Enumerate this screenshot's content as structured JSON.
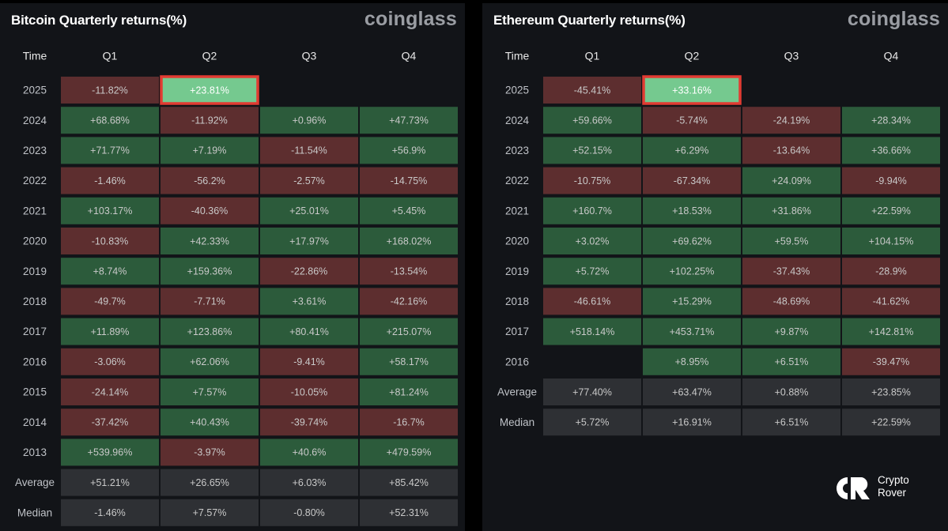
{
  "chart_data": [
    {
      "type": "heatmap",
      "title": "Bitcoin Quarterly returns(%)",
      "brand": "coinglass",
      "row_header": "Time",
      "columns": [
        "Q1",
        "Q2",
        "Q3",
        "Q4"
      ],
      "rows": [
        "2025",
        "2024",
        "2023",
        "2022",
        "2021",
        "2020",
        "2019",
        "2018",
        "2017",
        "2016",
        "2015",
        "2014",
        "2013",
        "Average",
        "Median"
      ],
      "values": [
        [
          "-11.82%",
          "+23.81%",
          "",
          ""
        ],
        [
          "+68.68%",
          "-11.92%",
          "+0.96%",
          "+47.73%"
        ],
        [
          "+71.77%",
          "+7.19%",
          "-11.54%",
          "+56.9%"
        ],
        [
          "-1.46%",
          "-56.2%",
          "-2.57%",
          "-14.75%"
        ],
        [
          "+103.17%",
          "-40.36%",
          "+25.01%",
          "+5.45%"
        ],
        [
          "-10.83%",
          "+42.33%",
          "+17.97%",
          "+168.02%"
        ],
        [
          "+8.74%",
          "+159.36%",
          "-22.86%",
          "-13.54%"
        ],
        [
          "-49.7%",
          "-7.71%",
          "+3.61%",
          "-42.16%"
        ],
        [
          "+11.89%",
          "+123.86%",
          "+80.41%",
          "+215.07%"
        ],
        [
          "-3.06%",
          "+62.06%",
          "-9.41%",
          "+58.17%"
        ],
        [
          "-24.14%",
          "+7.57%",
          "-10.05%",
          "+81.24%"
        ],
        [
          "-37.42%",
          "+40.43%",
          "-39.74%",
          "-16.7%"
        ],
        [
          "+539.96%",
          "-3.97%",
          "+40.6%",
          "+479.59%"
        ],
        [
          "+51.21%",
          "+26.65%",
          "+6.03%",
          "+85.42%"
        ],
        [
          "-1.46%",
          "+7.57%",
          "-0.80%",
          "+52.31%"
        ]
      ],
      "highlight": {
        "row": "2025",
        "column": "Q2"
      },
      "summary_rows": [
        "Average",
        "Median"
      ]
    },
    {
      "type": "heatmap",
      "title": "Ethereum Quarterly returns(%)",
      "brand": "coinglass",
      "row_header": "Time",
      "columns": [
        "Q1",
        "Q2",
        "Q3",
        "Q4"
      ],
      "rows": [
        "2025",
        "2024",
        "2023",
        "2022",
        "2021",
        "2020",
        "2019",
        "2018",
        "2017",
        "2016",
        "Average",
        "Median"
      ],
      "values": [
        [
          "-45.41%",
          "+33.16%",
          "",
          ""
        ],
        [
          "+59.66%",
          "-5.74%",
          "-24.19%",
          "+28.34%"
        ],
        [
          "+52.15%",
          "+6.29%",
          "-13.64%",
          "+36.66%"
        ],
        [
          "-10.75%",
          "-67.34%",
          "+24.09%",
          "-9.94%"
        ],
        [
          "+160.7%",
          "+18.53%",
          "+31.86%",
          "+22.59%"
        ],
        [
          "+3.02%",
          "+69.62%",
          "+59.5%",
          "+104.15%"
        ],
        [
          "+5.72%",
          "+102.25%",
          "-37.43%",
          "-28.9%"
        ],
        [
          "-46.61%",
          "+15.29%",
          "-48.69%",
          "-41.62%"
        ],
        [
          "+518.14%",
          "+453.71%",
          "+9.87%",
          "+142.81%"
        ],
        [
          "",
          "+8.95%",
          "+6.51%",
          "-39.47%"
        ],
        [
          "+77.40%",
          "+63.47%",
          "+0.88%",
          "+23.85%"
        ],
        [
          "+5.72%",
          "+16.91%",
          "+6.51%",
          "+22.59%"
        ]
      ],
      "highlight": {
        "row": "2025",
        "column": "Q2"
      },
      "summary_rows": [
        "Average",
        "Median"
      ]
    }
  ],
  "colors": {
    "positive": "#2c5b3b",
    "negative": "#5d2e2f",
    "summary": "#2e3034",
    "highlight_fill": "#75c98f",
    "highlight_border": "#e23b32",
    "background": "#121418"
  },
  "watermark": {
    "icon": "crypto-rover-logo-icon",
    "line1": "Crypto",
    "line2": "Rover"
  }
}
